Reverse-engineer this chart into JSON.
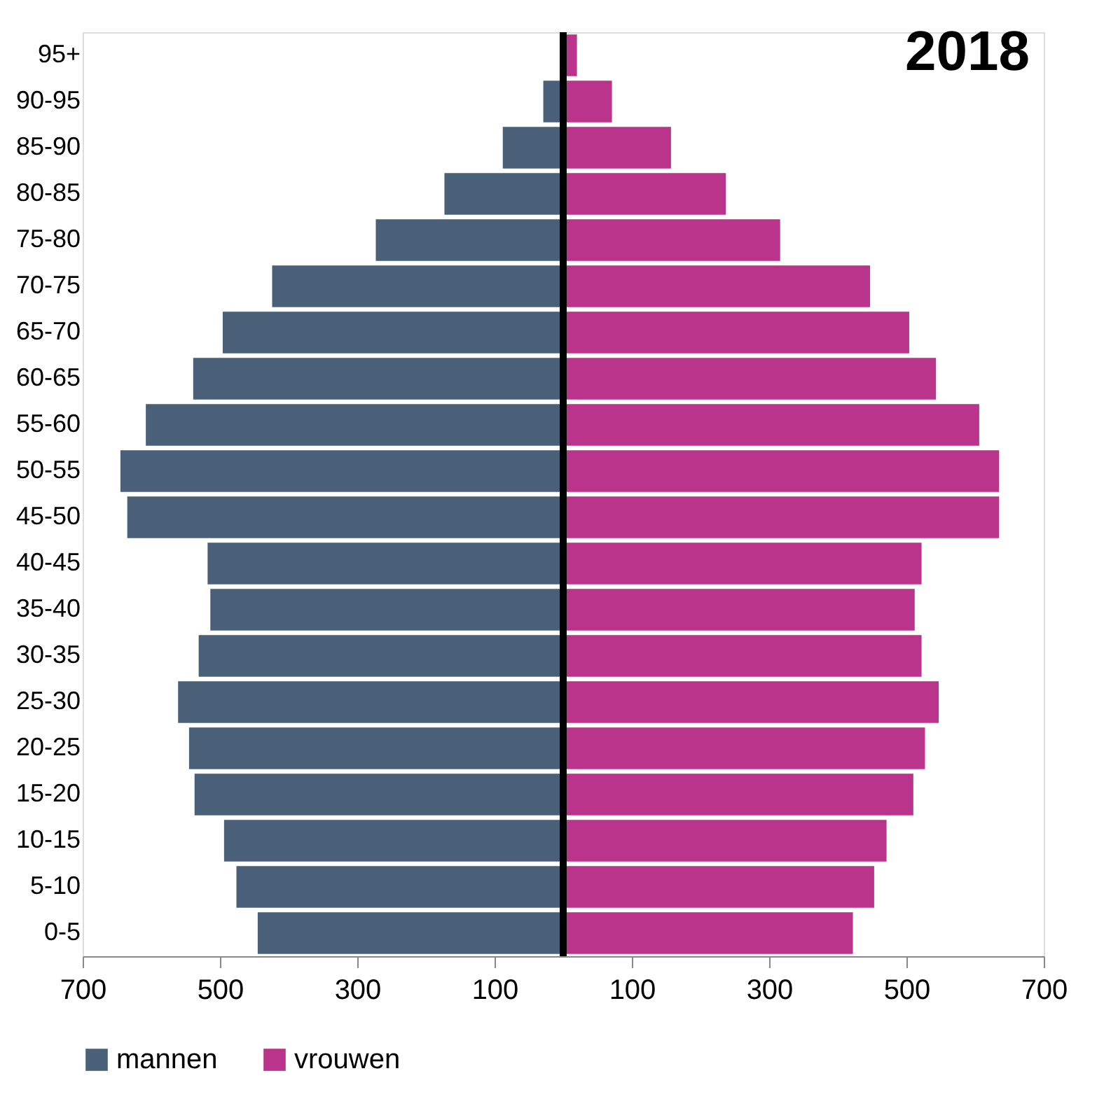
{
  "chart_data": {
    "type": "bar",
    "orientation": "horizontal",
    "annotations": [
      "2018"
    ],
    "categories": [
      "95+",
      "90-95",
      "85-90",
      "80-85",
      "75-80",
      "70-75",
      "65-70",
      "60-65",
      "55-60",
      "50-55",
      "45-50",
      "40-45",
      "35-40",
      "30-35",
      "25-30",
      "20-25",
      "15-20",
      "10-15",
      "5-10",
      "0-5"
    ],
    "series": [
      {
        "name": "mannen",
        "color": "#4a6079",
        "values": [
          null,
          -29,
          -88,
          -173,
          -273,
          -424,
          -496,
          -539,
          -608,
          -645,
          -635,
          -518,
          -514,
          -531,
          -561,
          -545,
          -537,
          -494,
          -476,
          -445
        ]
      },
      {
        "name": "vrouwen",
        "color": "#b9348a",
        "values": [
          20,
          71,
          157,
          237,
          316,
          447,
          504,
          543,
          606,
          635,
          635,
          522,
          512,
          522,
          547,
          527,
          510,
          471,
          453,
          422
        ]
      }
    ],
    "xlim": [
      -700,
      700
    ],
    "xticks": [
      {
        "value": -700,
        "label": "700"
      },
      {
        "value": -500,
        "label": "500"
      },
      {
        "value": -300,
        "label": "300"
      },
      {
        "value": -100,
        "label": "100"
      },
      100,
      300,
      500,
      700
    ],
    "ref_lines": [
      {
        "axis": "x",
        "value": 0,
        "color": "#000000"
      }
    ],
    "stacked": true,
    "grid": false,
    "legend": "bottom"
  }
}
